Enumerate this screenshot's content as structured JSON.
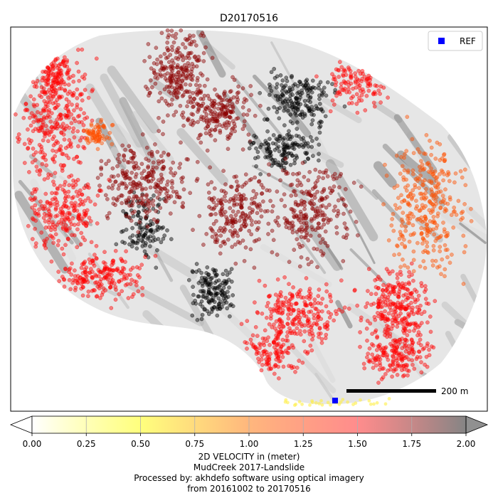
{
  "chart_data": {
    "type": "scatter",
    "title": "D20170516",
    "legend": {
      "label": "REF",
      "placement": "top-right",
      "color": "#0000ff",
      "marker": "square"
    },
    "scale_bar": {
      "label": "200 m",
      "length_m": 200
    },
    "colorbar": {
      "orientation": "horizontal",
      "extend": "both",
      "vmin": 0.0,
      "vmax": 2.0,
      "ticks": [
        0.0,
        0.25,
        0.5,
        0.75,
        1.0,
        1.25,
        1.5,
        1.75,
        2.0
      ],
      "tick_labels": [
        "0.00",
        "0.25",
        "0.50",
        "0.75",
        "1.00",
        "1.25",
        "1.50",
        "1.75",
        "2.00"
      ],
      "colors": [
        "#ffffff",
        "#ffff66",
        "#ffaa66",
        "#ff6666",
        "#777777"
      ],
      "label_lines": [
        "2D VELOCITY in (meter)",
        "MudCreek 2017-Landslide",
        "Processed by: akhdefo software using optical imagery",
        "from 20161002 to 20170516"
      ]
    },
    "point_colors": {
      "low": "#000000",
      "mid": "#8b0000",
      "high": "#ff0000",
      "highest": "#ff5000"
    },
    "ref_point_color": "#0000ff",
    "grid": false
  }
}
